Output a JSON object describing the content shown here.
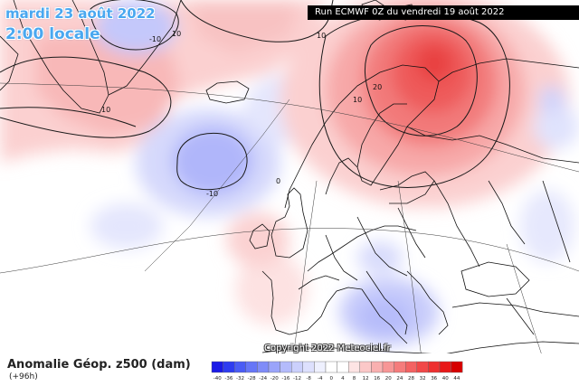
{
  "valid_date": "mardi 23 août 2022",
  "valid_time": "2:00 locale",
  "run_info": "Run ECMWF 0Z du vendredi 19 août 2022",
  "copyright": "Copyright 2022 Meteociel.fr",
  "parameter": "Anomalie Géop. z500 (dam)",
  "lead_time": "(+96h)",
  "contour_labels": {
    "greenland": "10",
    "greenland_low": "-10",
    "north_atlantic": "10",
    "atlantic_low": "-10",
    "norway": "10",
    "scandinavia": "10",
    "finland_high": "20",
    "iberia": "0"
  },
  "legend": {
    "values": [
      "-40",
      "-36",
      "-32",
      "-28",
      "-24",
      "-20",
      "-16",
      "-12",
      "-8",
      "-4",
      "0",
      "4",
      "8",
      "12",
      "16",
      "20",
      "24",
      "28",
      "32",
      "36",
      "40",
      "44"
    ],
    "colors": [
      "#1a1ae6",
      "#2e3cf0",
      "#4a5cf5",
      "#6676f7",
      "#7f8cf8",
      "#9aa4fa",
      "#b4bbfb",
      "#cbd0fc",
      "#dde0fd",
      "#eef0fe",
      "#ffffff",
      "#ffffff",
      "#fde4e4",
      "#fbc8c8",
      "#f9b0b0",
      "#f79696",
      "#f57c7c",
      "#f36262",
      "#f14848",
      "#ee3030",
      "#e81818",
      "#d60000"
    ]
  },
  "colors": {
    "warm_anomaly": "#ef4444",
    "cold_anomaly": "#6b74f0",
    "title_blue": "#4aa8f0"
  }
}
